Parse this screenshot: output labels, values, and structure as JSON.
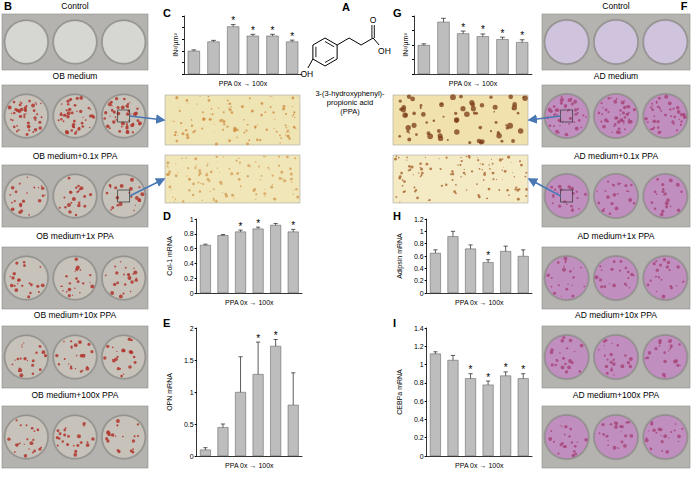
{
  "chart_data": [
    {
      "type": "bar",
      "title": "C",
      "y_label": "IN²/µm²",
      "x_label": "PPA 0x → 100x",
      "categories": [
        null,
        null,
        null,
        null,
        null,
        null
      ],
      "values": [
        100,
        140,
        205,
        165,
        165,
        140
      ],
      "errors": [
        4,
        5,
        8,
        6,
        6,
        6
      ],
      "annotations": [
        {
          "index": 2,
          "text": "*"
        },
        {
          "index": 3,
          "text": "*"
        },
        {
          "index": 4,
          "text": "*"
        },
        {
          "index": 5,
          "text": "*"
        }
      ],
      "color": "#bdbdbd",
      "ylim": [
        0,
        250
      ],
      "yticks": [
        0,
        50,
        100,
        150,
        200,
        250
      ],
      "grid": false,
      "tick_labels": false
    },
    {
      "type": "bar",
      "title": "G",
      "y_label": "IN²/µm²",
      "x_label": "PPA 0x → 100x",
      "categories": [
        null,
        null,
        null,
        null,
        null,
        null
      ],
      "values": [
        100,
        180,
        140,
        130,
        120,
        110
      ],
      "errors": [
        4,
        12,
        8,
        8,
        7,
        8
      ],
      "annotations": [
        {
          "index": 2,
          "text": "*"
        },
        {
          "index": 3,
          "text": "*"
        },
        {
          "index": 4,
          "text": "*"
        },
        {
          "index": 5,
          "text": "*"
        }
      ],
      "color": "#bdbdbd",
      "ylim": [
        0,
        200
      ],
      "yticks": [
        0,
        50,
        100,
        150,
        200
      ],
      "grid": false,
      "tick_labels": false
    },
    {
      "type": "bar",
      "title": "D",
      "y_label": "Col-1 mRNA",
      "x_label": "PPA 0x → 100x",
      "categories": [
        null,
        null,
        null,
        null,
        null,
        null
      ],
      "values": [
        0.65,
        0.78,
        0.83,
        0.87,
        0.92,
        0.83
      ],
      "errors": [
        0.01,
        0.01,
        0.02,
        0.02,
        0.02,
        0.03
      ],
      "annotations": [
        {
          "index": 2,
          "text": "*"
        },
        {
          "index": 3,
          "text": "*"
        },
        {
          "index": 4,
          "text": "*"
        },
        {
          "index": 5,
          "text": "*"
        }
      ],
      "color": "#bdbdbd",
      "ylim": [
        0,
        1
      ],
      "yticks": [
        0,
        0.2,
        0.4,
        0.6,
        0.8,
        1
      ],
      "grid": false,
      "tick_labels": "y"
    },
    {
      "type": "bar",
      "title": "E",
      "y_label": "OPN mRNA",
      "x_label": "PPA 0x → 100x",
      "categories": [
        null,
        null,
        null,
        null,
        null,
        null
      ],
      "values": [
        0.1,
        0.45,
        1.0,
        1.28,
        1.72,
        0.8
      ],
      "errors": [
        0.03,
        0.05,
        0.55,
        0.5,
        0.1,
        0.5
      ],
      "annotations": [
        {
          "index": 3,
          "text": "*"
        },
        {
          "index": 4,
          "text": "*"
        }
      ],
      "color": "#bdbdbd",
      "ylim": [
        0,
        2
      ],
      "yticks": [
        0,
        0.5,
        1,
        1.5,
        2
      ],
      "grid": false,
      "tick_labels": "y"
    },
    {
      "type": "bar",
      "title": "H",
      "y_label": "Adipsin mRNA",
      "x_label": "PPA 0x → 100x",
      "categories": [
        null,
        null,
        null,
        null,
        null,
        null
      ],
      "values": [
        0.65,
        0.92,
        0.72,
        0.5,
        0.68,
        0.6
      ],
      "errors": [
        0.05,
        0.08,
        0.06,
        0.04,
        0.08,
        0.1
      ],
      "annotations": [
        {
          "index": 3,
          "text": "*"
        }
      ],
      "color": "#bdbdbd",
      "ylim": [
        0,
        1.2
      ],
      "yticks": [
        0,
        0.2,
        0.4,
        0.6,
        0.8,
        1,
        1.2
      ],
      "grid": false,
      "tick_labels": "y"
    },
    {
      "type": "bar",
      "title": "I",
      "y_label": "CEBPa mRNA",
      "x_label": "PPA 0x → 100x",
      "categories": [
        null,
        null,
        null,
        null,
        null,
        null
      ],
      "values": [
        1.12,
        1.05,
        0.85,
        0.78,
        0.88,
        0.85
      ],
      "errors": [
        0.02,
        0.05,
        0.05,
        0.04,
        0.04,
        0.05
      ],
      "annotations": [
        {
          "index": 2,
          "text": "*"
        },
        {
          "index": 3,
          "text": "*"
        },
        {
          "index": 4,
          "text": "*"
        },
        {
          "index": 5,
          "text": "*"
        }
      ],
      "color": "#bdbdbd",
      "ylim": [
        0,
        1.4
      ],
      "yticks": [
        0,
        0.2,
        0.4,
        0.6,
        0.8,
        1,
        1.2,
        1.4
      ],
      "grid": false,
      "tick_labels": "y"
    }
  ],
  "figure": {
    "structure": {
      "letter": "A",
      "atoms": {
        "carbonyl": "O",
        "acid": "OH",
        "phenol": "OH"
      },
      "name_lines": [
        "3-(3-hydroxyphenyl)-",
        "propionic acid",
        "(PPA)"
      ]
    },
    "well_columns": [
      {
        "letter": "B",
        "rows": [
          "Control",
          "OB medium",
          "OB medium+0.1x PPA",
          "OB medium+1x PPA",
          "OB medium+10x PPA",
          "OB medium+100x PPA"
        ],
        "control_color": "#d6d6d3",
        "well_color": "#c7c2ba",
        "stain_color": "#b0342b"
      },
      {
        "letter": "F",
        "rows": [
          "Control",
          "AD medium",
          "AD medium+0.1x PPA",
          "AD medium+1x PPA",
          "AD medium+10x PPA",
          "AD medium+100x PPA"
        ],
        "control_color": "#cfc3dd",
        "well_color": "#c08fc0",
        "stain_color": "#a8467a"
      }
    ],
    "micrographs": [
      {
        "color": "#efe4b4",
        "stain_color": "#cf8a3c"
      },
      {
        "color": "#f0e6b8",
        "stain_color": "#d39a50"
      },
      {
        "color": "#f1e2ad",
        "stain_color": "#7a3a14"
      },
      {
        "color": "#f4eac4",
        "stain_color": "#a35a22"
      }
    ],
    "arrow_color": "#4a78b5"
  }
}
